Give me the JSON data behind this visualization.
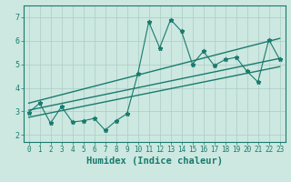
{
  "title": "",
  "xlabel": "Humidex (Indice chaleur)",
  "xlim": [
    -0.5,
    23.5
  ],
  "ylim": [
    1.7,
    7.5
  ],
  "xticks": [
    0,
    1,
    2,
    3,
    4,
    5,
    6,
    7,
    8,
    9,
    10,
    11,
    12,
    13,
    14,
    15,
    16,
    17,
    18,
    19,
    20,
    21,
    22,
    23
  ],
  "yticks": [
    2,
    3,
    4,
    5,
    6,
    7
  ],
  "data_x": [
    0,
    1,
    2,
    3,
    4,
    5,
    6,
    7,
    8,
    9,
    10,
    11,
    12,
    13,
    14,
    15,
    16,
    17,
    18,
    19,
    20,
    21,
    22,
    23
  ],
  "data_y": [
    2.95,
    3.35,
    2.5,
    3.2,
    2.55,
    2.6,
    2.7,
    2.2,
    2.6,
    2.9,
    4.6,
    6.8,
    5.7,
    6.9,
    6.4,
    5.0,
    5.55,
    4.95,
    5.2,
    5.3,
    4.7,
    4.25,
    6.05,
    5.2
  ],
  "line1_x": [
    0,
    23
  ],
  "line1_y": [
    3.05,
    5.25
  ],
  "line2_x": [
    0,
    23
  ],
  "line2_y": [
    2.75,
    4.9
  ],
  "line3_x": [
    0,
    23
  ],
  "line3_y": [
    3.35,
    6.1
  ],
  "color": "#1a7a6e",
  "bg_color": "#cce8e0",
  "grid_color": "#aaccc5",
  "tick_fontsize": 5.5,
  "label_fontsize": 7.5
}
